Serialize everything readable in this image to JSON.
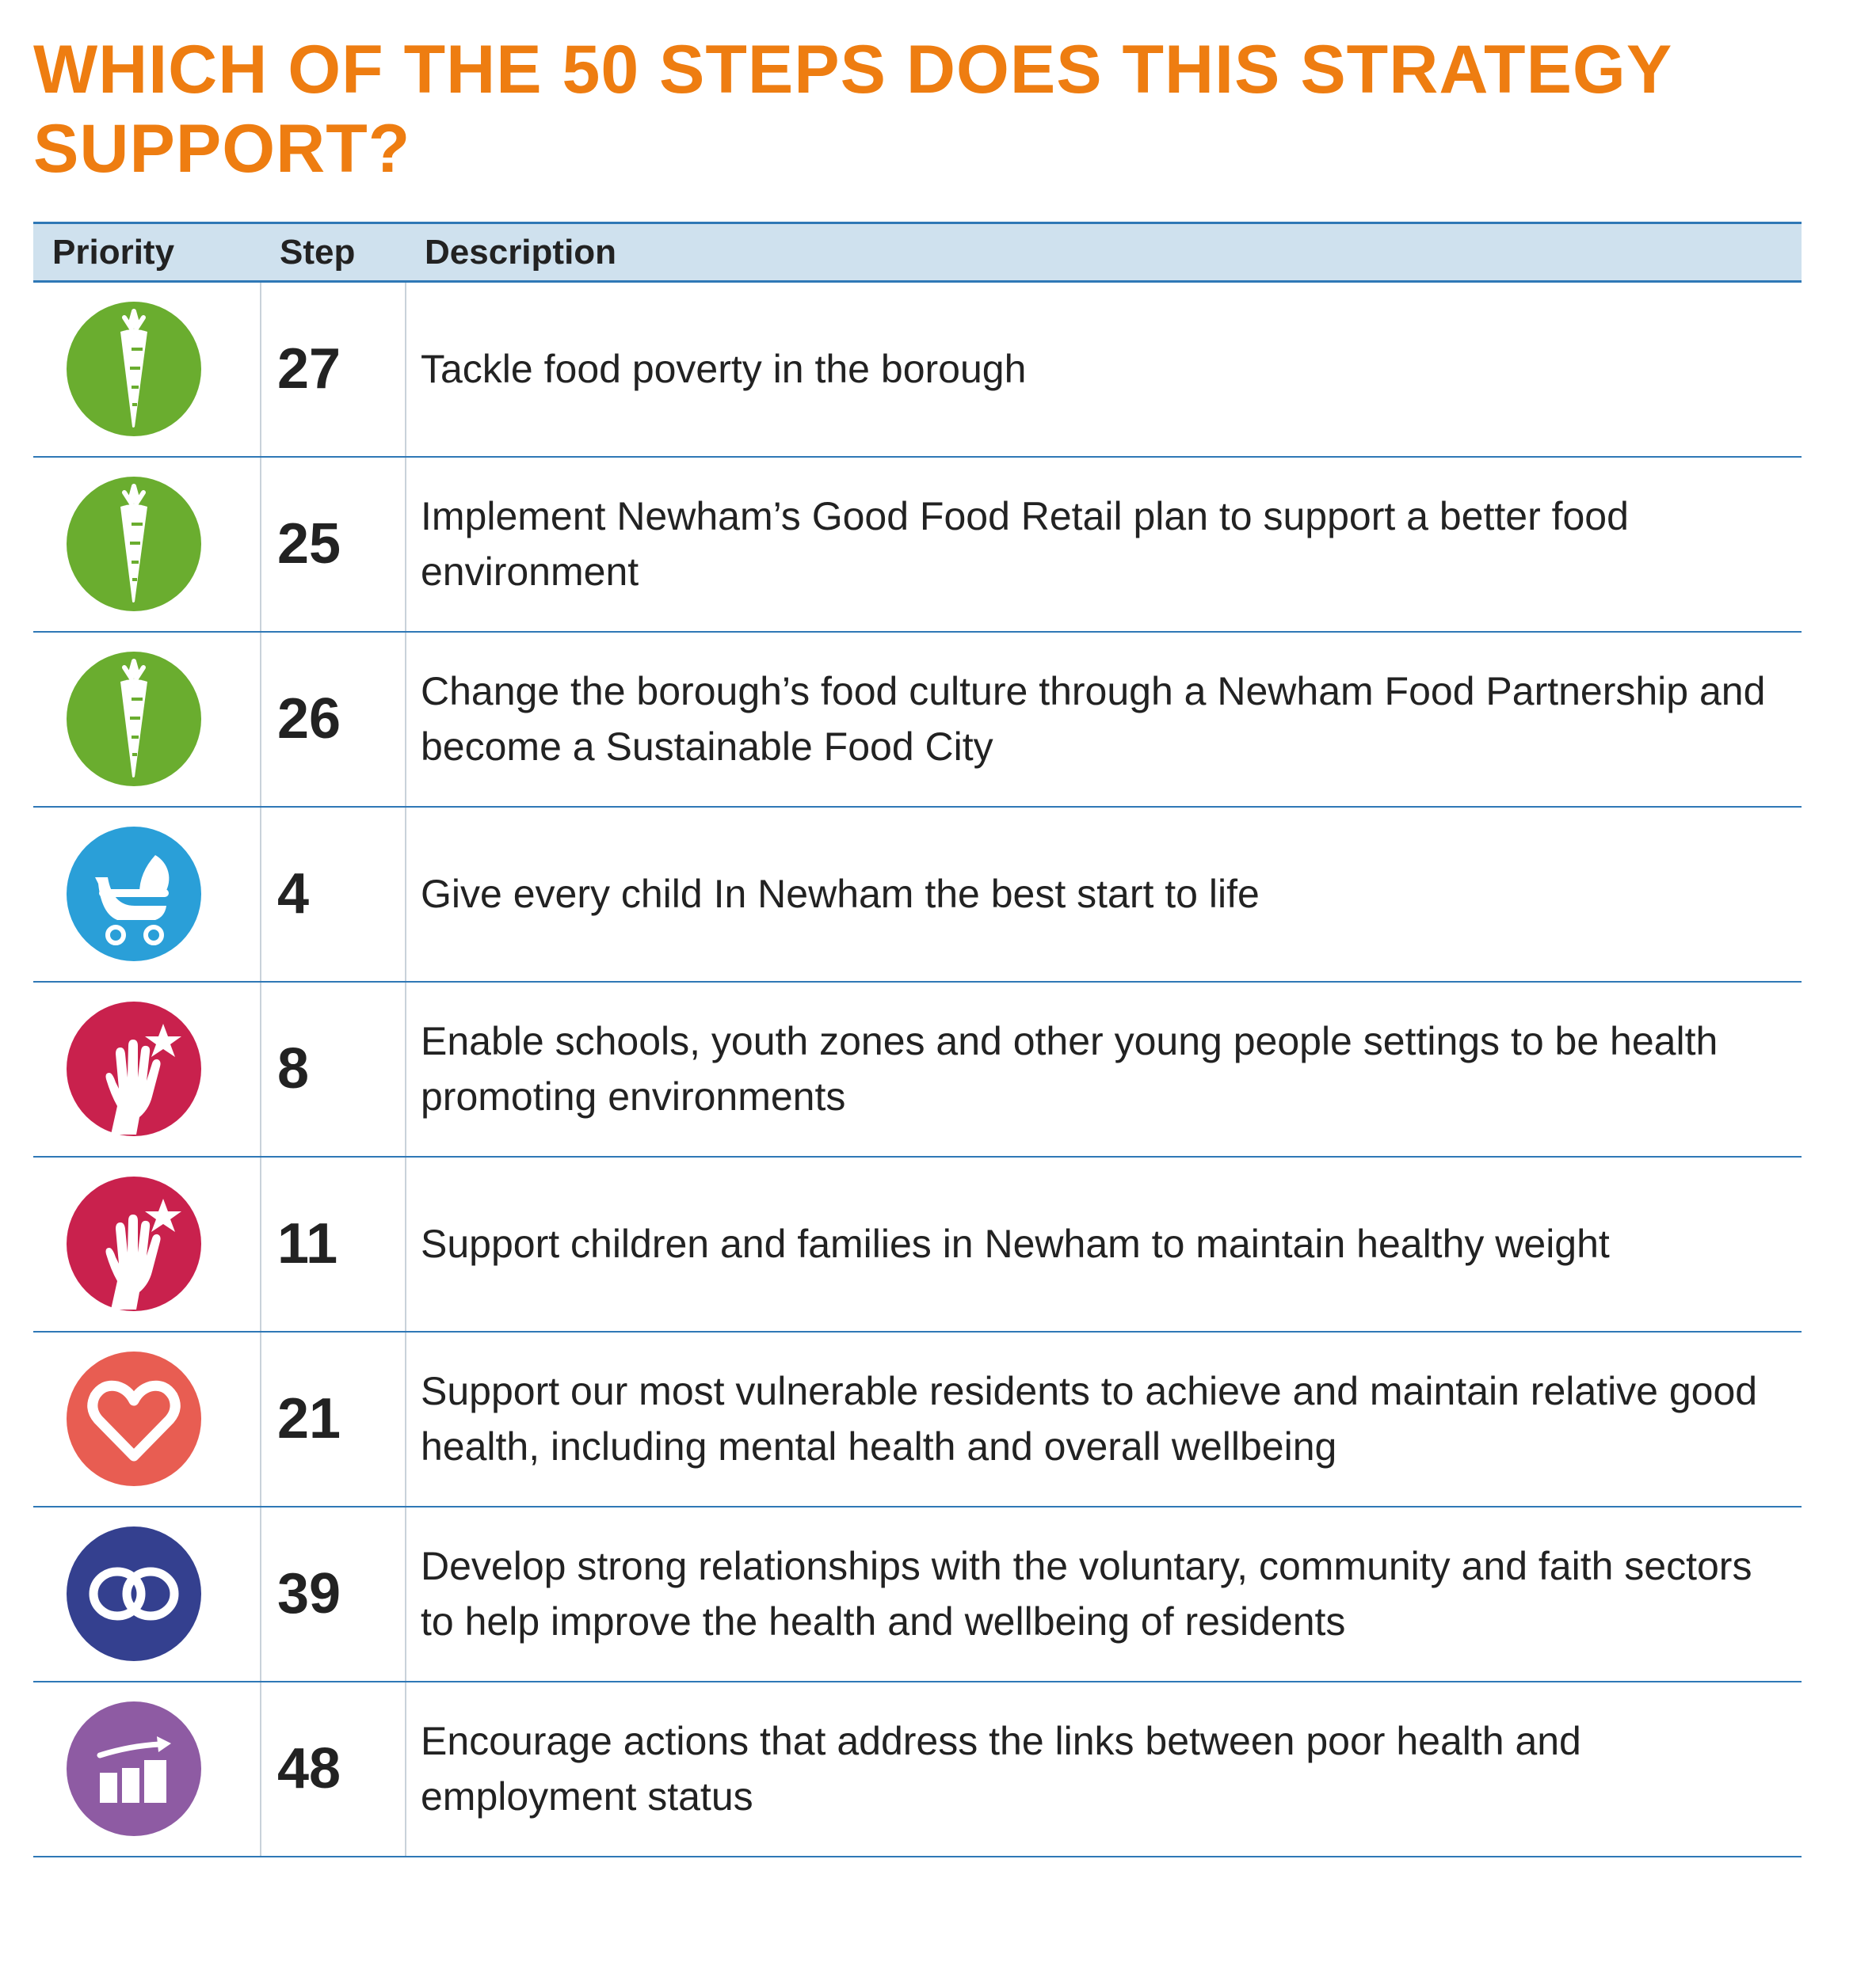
{
  "title": "WHICH OF THE 50 STEPS DOES THIS STRATEGY SUPPORT?",
  "table": {
    "headers": [
      "Priority",
      "Step",
      "Description"
    ],
    "rows": [
      {
        "icon": "carrot-icon",
        "color": "#6aad2f",
        "step": "27",
        "description": "Tackle food poverty in the borough"
      },
      {
        "icon": "carrot-icon",
        "color": "#6aad2f",
        "step": "25",
        "description": "Implement Newham’s Good Food Retail plan to support a better food environment"
      },
      {
        "icon": "carrot-icon",
        "color": "#6aad2f",
        "step": "26",
        "description": "Change the borough’s food culture through a Newham Food Partnership and become a Sustainable Food City"
      },
      {
        "icon": "pram-icon",
        "color": "#2a9fd8",
        "step": "4",
        "description": "Give every child In Newham the best start to life"
      },
      {
        "icon": "hand-star-icon",
        "color": "#c9214d",
        "step": "8",
        "description": "Enable schools, youth zones and other young people settings to be health promoting environments"
      },
      {
        "icon": "hand-star-icon",
        "color": "#c9214d",
        "step": "11",
        "description": "Support children and families in Newham to maintain healthy weight"
      },
      {
        "icon": "heart-icon",
        "color": "#e85d52",
        "step": "21",
        "description": "Support our most vulnerable residents to achieve and maintain relative good health, including mental health and overall wellbeing"
      },
      {
        "icon": "linked-rings-icon",
        "color": "#34408f",
        "step": "39",
        "description": "Develop strong relationships with the voluntary, community and faith sectors to help improve the health and wellbeing of residents"
      },
      {
        "icon": "growth-chart-icon",
        "color": "#8e5ba3",
        "step": "48",
        "description": "Encourage actions that address the links between poor health and employment status"
      }
    ]
  }
}
